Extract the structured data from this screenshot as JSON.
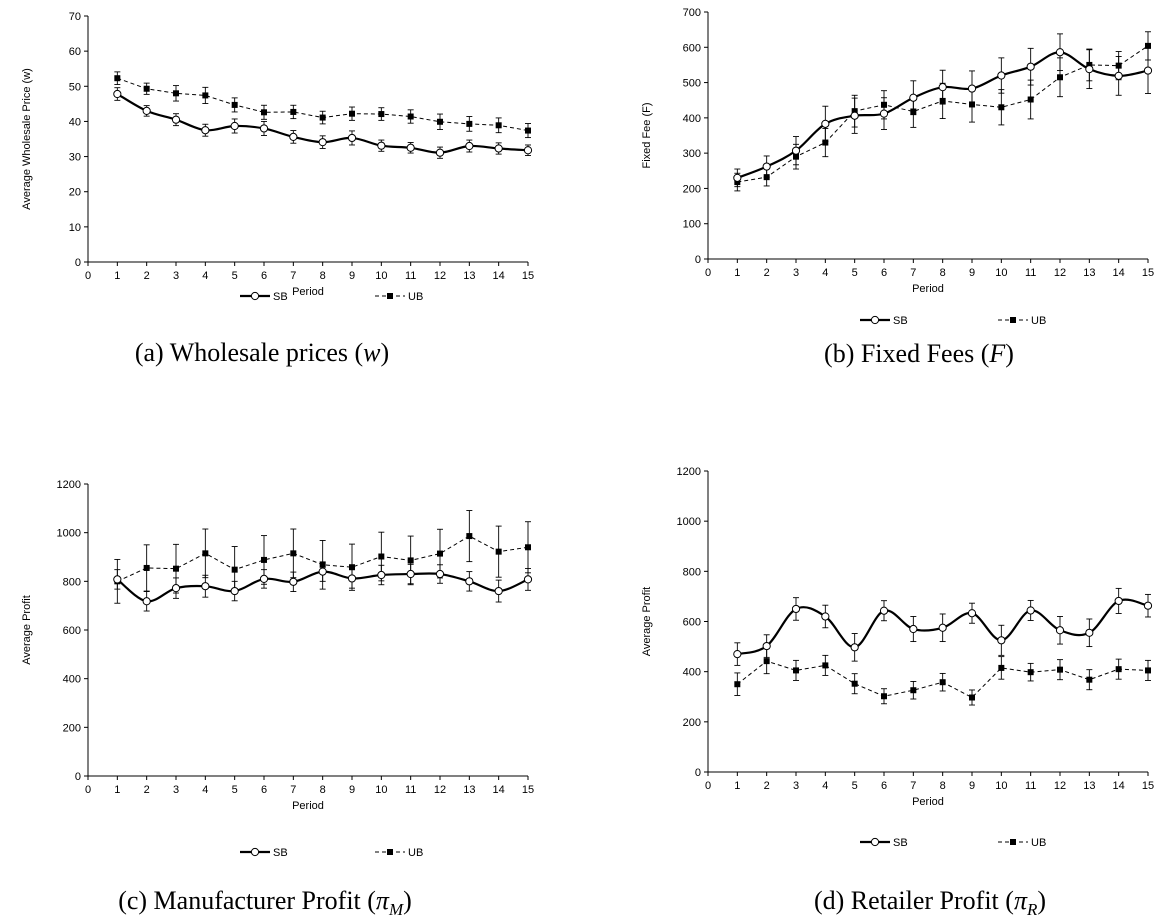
{
  "chart_data": [
    {
      "type": "line",
      "caption": "(a)  Wholesale prices (",
      "caption_var": "w",
      "caption_end": ")",
      "xlabel": "Period",
      "ylabel": "Average Wholesale Price (w)",
      "x": [
        1,
        2,
        3,
        4,
        5,
        6,
        7,
        8,
        9,
        10,
        11,
        12,
        13,
        14,
        15
      ],
      "xlim": [
        0,
        15
      ],
      "ylim": [
        0,
        70
      ],
      "yticks": [
        0,
        10,
        20,
        30,
        40,
        50,
        60,
        70
      ],
      "series": [
        {
          "name": "SB",
          "style": "solid",
          "marker": "circle",
          "values": [
            47.8,
            43.0,
            40.5,
            37.5,
            38.7,
            38.0,
            35.6,
            34.1,
            35.3,
            33.1,
            32.5,
            31.1,
            33.0,
            32.3,
            31.8
          ],
          "errors": [
            1.8,
            1.5,
            1.7,
            1.7,
            2.0,
            2.0,
            1.8,
            1.8,
            2.0,
            1.6,
            1.5,
            1.6,
            1.7,
            1.6,
            1.5
          ]
        },
        {
          "name": "UB",
          "style": "dashed",
          "marker": "square",
          "values": [
            52.3,
            49.3,
            48.0,
            47.4,
            44.7,
            42.6,
            42.7,
            41.1,
            42.2,
            42.1,
            41.4,
            39.9,
            39.3,
            38.9,
            37.4
          ],
          "errors": [
            1.8,
            1.6,
            2.2,
            2.3,
            2.0,
            2.0,
            1.9,
            1.8,
            1.9,
            1.8,
            1.9,
            2.2,
            2.1,
            2.1,
            2.0
          ]
        }
      ]
    },
    {
      "type": "line",
      "caption": "(b)  Fixed Fees (",
      "caption_var": "F",
      "caption_end": ")",
      "xlabel": "Period",
      "ylabel": "Fixed Fee (F)",
      "x": [
        1,
        2,
        3,
        4,
        5,
        6,
        7,
        8,
        9,
        10,
        11,
        12,
        13,
        14,
        15
      ],
      "xlim": [
        0,
        15
      ],
      "ylim": [
        0,
        700
      ],
      "yticks": [
        0,
        100,
        200,
        300,
        400,
        500,
        600,
        700
      ],
      "series": [
        {
          "name": "SB",
          "style": "solid",
          "marker": "circle",
          "values": [
            230,
            262,
            307,
            383,
            406,
            412,
            457,
            487,
            483,
            520,
            545,
            586,
            538,
            519,
            534
          ],
          "errors": [
            25,
            30,
            40,
            50,
            50,
            45,
            48,
            48,
            50,
            50,
            52,
            52,
            55,
            55,
            65
          ]
        },
        {
          "name": "UB",
          "style": "dashed",
          "marker": "square",
          "values": [
            218,
            232,
            290,
            330,
            419,
            437,
            418,
            448,
            438,
            430,
            452,
            515,
            550,
            548,
            604
          ],
          "errors": [
            25,
            25,
            35,
            40,
            45,
            40,
            45,
            50,
            50,
            50,
            55,
            55,
            45,
            40,
            40
          ]
        }
      ]
    },
    {
      "type": "line",
      "caption": "(c) Manufacturer Profit (",
      "caption_var": "π",
      "caption_sub": "M",
      "caption_end": ")",
      "xlabel": "Period",
      "ylabel": "Average Profit",
      "x": [
        1,
        2,
        3,
        4,
        5,
        6,
        7,
        8,
        9,
        10,
        11,
        12,
        13,
        14,
        15
      ],
      "xlim": [
        0,
        15
      ],
      "ylim": [
        0,
        1200
      ],
      "yticks": [
        0,
        200,
        400,
        600,
        800,
        1000,
        1200
      ],
      "series": [
        {
          "name": "SB",
          "style": "solid",
          "marker": "circle",
          "values": [
            808,
            718,
            772,
            780,
            760,
            810,
            798,
            840,
            812,
            826,
            830,
            830,
            800,
            760,
            808
          ],
          "errors": [
            40,
            40,
            42,
            45,
            40,
            38,
            40,
            40,
            40,
            40,
            40,
            38,
            40,
            45,
            45
          ]
        },
        {
          "name": "UB",
          "style": "dashed",
          "marker": "square",
          "values": [
            800,
            855,
            852,
            915,
            848,
            888,
            915,
            868,
            858,
            902,
            886,
            914,
            986,
            922,
            940
          ],
          "errors": [
            90,
            95,
            100,
            100,
            95,
            100,
            100,
            100,
            95,
            100,
            100,
            100,
            105,
            105,
            105
          ]
        }
      ]
    },
    {
      "type": "line",
      "caption": "(d) Retailer Profit (",
      "caption_var": "π",
      "caption_sub": "R",
      "caption_end": ")",
      "xlabel": "Period",
      "ylabel": "Average Profit",
      "x": [
        1,
        2,
        3,
        4,
        5,
        6,
        7,
        8,
        9,
        10,
        11,
        12,
        13,
        14,
        15
      ],
      "xlim": [
        0,
        15
      ],
      "ylim": [
        0,
        1200
      ],
      "yticks": [
        0,
        200,
        400,
        600,
        800,
        1000,
        1200
      ],
      "series": [
        {
          "name": "SB",
          "style": "solid",
          "marker": "circle",
          "values": [
            470,
            502,
            650,
            620,
            497,
            643,
            570,
            575,
            633,
            525,
            644,
            565,
            555,
            682,
            663
          ],
          "errors": [
            45,
            45,
            45,
            45,
            55,
            40,
            50,
            55,
            40,
            60,
            40,
            55,
            55,
            50,
            45
          ]
        },
        {
          "name": "UB",
          "style": "dashed",
          "marker": "square",
          "values": [
            350,
            442,
            405,
            425,
            352,
            302,
            326,
            358,
            297,
            415,
            398,
            408,
            368,
            410,
            405
          ],
          "errors": [
            45,
            50,
            40,
            40,
            40,
            30,
            35,
            35,
            30,
            45,
            35,
            40,
            40,
            40,
            40
          ]
        }
      ]
    }
  ]
}
